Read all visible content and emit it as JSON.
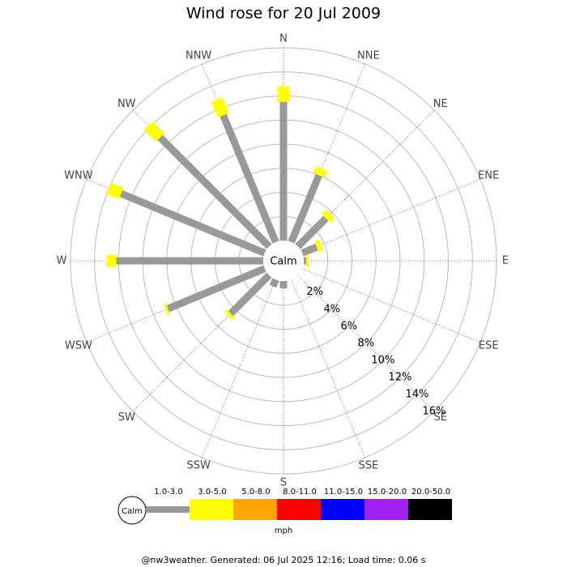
{
  "chart_data": {
    "type": "windrose",
    "title": "Wind rose for 20 Jul 2009",
    "categories": [
      "N",
      "NNE",
      "NE",
      "ENE",
      "E",
      "ESE",
      "SE",
      "SSE",
      "S",
      "SSW",
      "SW",
      "WSW",
      "W",
      "WNW",
      "NW",
      "NNW"
    ],
    "calm_label": "Calm",
    "rlim": [
      0,
      16
    ],
    "rticks": [
      {
        "value": 2,
        "label": "2%"
      },
      {
        "value": 4,
        "label": "4%"
      },
      {
        "value": 6,
        "label": "6%"
      },
      {
        "value": 8,
        "label": "8%"
      },
      {
        "value": 10,
        "label": "10%"
      },
      {
        "value": 12,
        "label": "12%"
      },
      {
        "value": 14,
        "label": "14%"
      },
      {
        "value": 16,
        "label": "16%"
      }
    ],
    "series": [
      {
        "name": "1.0-3.0",
        "color": "#999999",
        "values": [
          11.5,
          6.0,
          3.3,
          1.3,
          0.2,
          0,
          0,
          0,
          0.6,
          0.6,
          4.5,
          8.7,
          12.2,
          12.9,
          12.8,
          11.4
        ]
      },
      {
        "name": "3.0-5.0",
        "color": "#ffff00",
        "values": [
          1.3,
          0.6,
          0.5,
          0.4,
          0.2,
          0,
          0,
          0,
          0,
          0,
          0.3,
          0.2,
          0.8,
          1.1,
          1.4,
          1.4
        ]
      },
      {
        "name": "5.0-8.0",
        "color": "#ffa500",
        "values": [
          0,
          0,
          0,
          0,
          0,
          0,
          0,
          0,
          0,
          0,
          0,
          0,
          0,
          0,
          0,
          0
        ]
      },
      {
        "name": "8.0-11.0",
        "color": "#ff0000",
        "values": [
          0,
          0,
          0,
          0,
          0,
          0,
          0,
          0,
          0,
          0,
          0,
          0,
          0,
          0,
          0,
          0
        ]
      },
      {
        "name": "11.0-15.0",
        "color": "#0000ff",
        "values": [
          0,
          0,
          0,
          0,
          0,
          0,
          0,
          0,
          0,
          0,
          0,
          0,
          0,
          0,
          0,
          0
        ]
      },
      {
        "name": "15.0-20.0",
        "color": "#a020f0",
        "values": [
          0,
          0,
          0,
          0,
          0,
          0,
          0,
          0,
          0,
          0,
          0,
          0,
          0,
          0,
          0,
          0
        ]
      },
      {
        "name": "20.0-50.0",
        "color": "#000000",
        "values": [
          0,
          0,
          0,
          0,
          0,
          0,
          0,
          0,
          0,
          0,
          0,
          0,
          0,
          0,
          0,
          0
        ]
      }
    ],
    "legend_title": "mph",
    "footer": "@nw3weather. Generated: 06 Jul 2025 12:16; Load time: 0.06 s"
  }
}
